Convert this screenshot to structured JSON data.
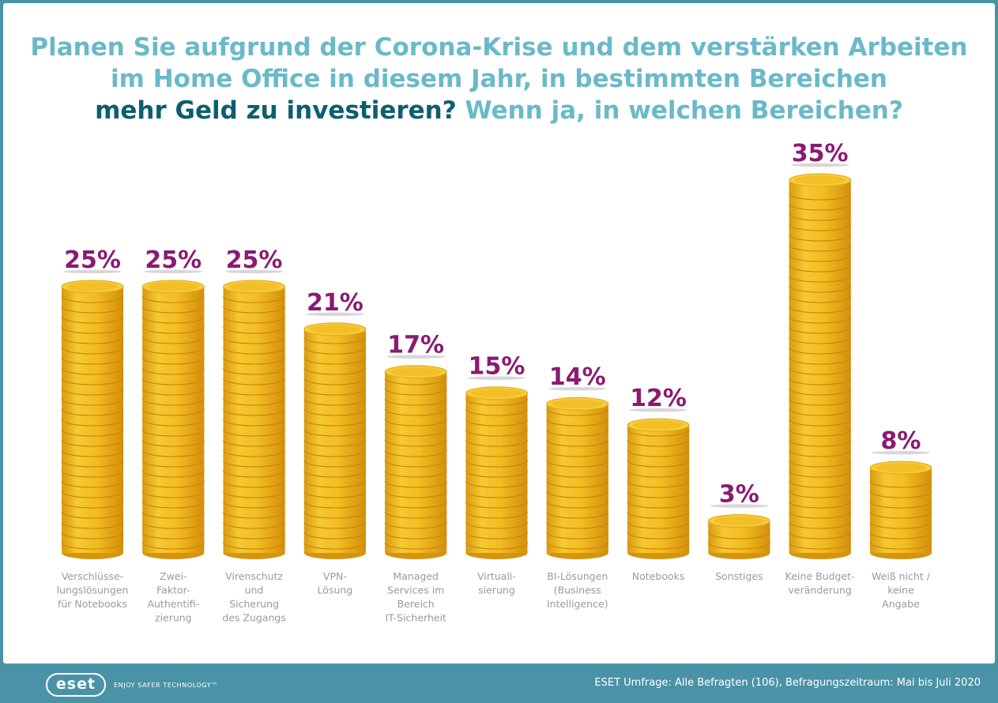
{
  "title": {
    "line1": "Planen Sie aufgrund der Corona-Krise und dem verstärken Arbeiten",
    "line2": "im Home Office in diesem Jahr, in bestimmten Bereichen",
    "line3_strong": "mehr Geld zu investieren?",
    "line3_rest": " Wenn ja, in welchen Bereichen?"
  },
  "colors": {
    "background": "#4a93a7",
    "title_light": "#6ab9c9",
    "title_dark": "#0d5e6e",
    "value_label": "#8b1a72",
    "coin": "#f0b820",
    "category_label": "#9a9a9a"
  },
  "chart_data": {
    "type": "bar",
    "title": "Planen Sie aufgrund der Corona-Krise und dem verstärken Arbeiten im Home Office in diesem Jahr, in bestimmten Bereichen mehr Geld zu investieren? Wenn ja, in welchen Bereichen?",
    "categories": [
      [
        "Verschlüsse-",
        "lungslösungen",
        "für Notebooks"
      ],
      [
        "Zwei-",
        "Faktor-",
        "Authentifi-",
        "zierung"
      ],
      [
        "Virenschutz",
        "und",
        "Sicherung",
        "des Zugangs"
      ],
      [
        "VPN-",
        "Lösung"
      ],
      [
        "Managed",
        "Services im",
        "Bereich",
        "IT-Sicherheit"
      ],
      [
        "Virtuali-",
        "sierung"
      ],
      [
        "BI-Lösungen",
        "(Business",
        "Intelligence)"
      ],
      [
        "Notebooks"
      ],
      [
        "Sonstiges"
      ],
      [
        "Keine Budget-",
        "veränderung"
      ],
      [
        "Weiß nicht /",
        "keine",
        "Angabe"
      ]
    ],
    "values": [
      25,
      25,
      25,
      21,
      17,
      15,
      14,
      12,
      3,
      35,
      8
    ],
    "value_labels": [
      "25%",
      "25%",
      "25%",
      "21%",
      "17%",
      "15%",
      "14%",
      "12%",
      "3%",
      "35%",
      "8%"
    ],
    "unit": "%",
    "ylim": [
      0,
      35
    ],
    "grid": false,
    "legend": "none"
  },
  "footer": {
    "logo": "eset",
    "tagline": "ENJOY SAFER TECHNOLOGY™",
    "source": "ESET Umfrage: Alle Befragten (106), Befragungszeitraum: Mai bis Juli 2020"
  }
}
